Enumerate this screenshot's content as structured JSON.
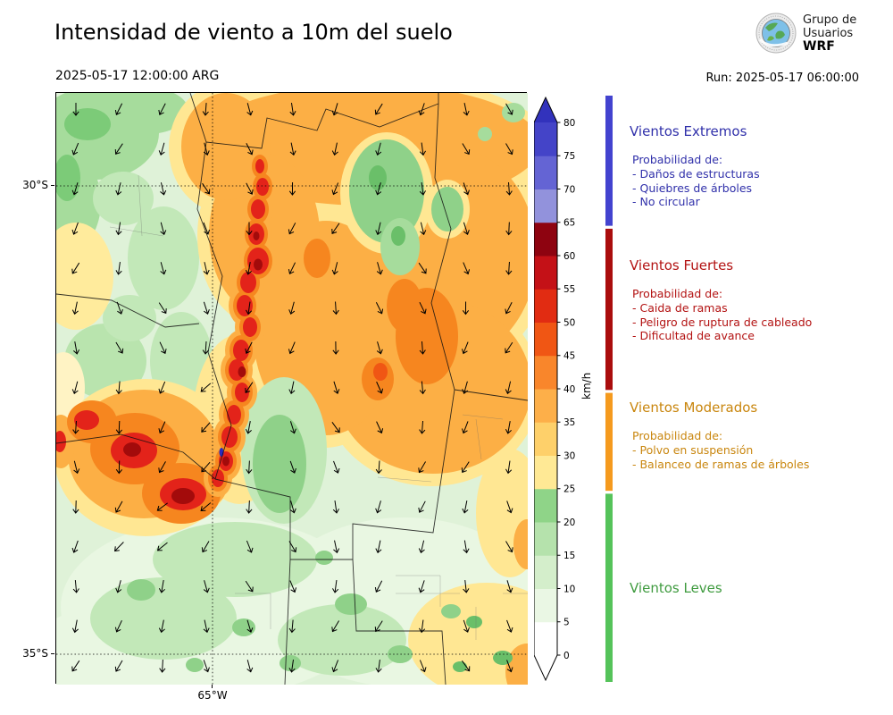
{
  "header": {
    "title": "Intensidad de viento a 10m del suelo",
    "valid_datetime": "2025-05-17 12:00:00 ARG",
    "run_label": "Run: 2025-05-17 06:00:00",
    "logo": {
      "line1": "Grupo de",
      "line2": "Usuarios",
      "line3": "WRF"
    }
  },
  "map": {
    "lat_labels": [
      "30°S",
      "35°S"
    ],
    "lon_labels": [
      "65°W"
    ],
    "wind_arrows": {
      "cols": 11,
      "rows": 15,
      "predominant_direction": "south"
    }
  },
  "colorbar": {
    "unit": "km/h",
    "ticks": [
      0,
      5,
      10,
      15,
      20,
      25,
      30,
      35,
      40,
      45,
      50,
      55,
      60,
      65,
      70,
      75,
      80
    ],
    "segment_colors_bottom_to_top": [
      "#ffffff",
      "#eaf7e4",
      "#d4eecb",
      "#b5e2ac",
      "#8fd488",
      "#ffe995",
      "#fed06a",
      "#fdaf49",
      "#f9862b",
      "#f05614",
      "#e12c12",
      "#c41117",
      "#8e0310",
      "#9292dc",
      "#6464d4",
      "#4444c8"
    ],
    "extend_over_color": "#3232bc",
    "extend_under_color": "#ffffff"
  },
  "legend": {
    "strip_segments": [
      {
        "color": "#4343cf",
        "from_pct": 0,
        "to_pct": 22.2
      },
      {
        "color": "#aa0d0d",
        "from_pct": 22.7,
        "to_pct": 50.2
      },
      {
        "color": "#f59a1e",
        "from_pct": 50.7,
        "to_pct": 67.4
      },
      {
        "color": "#55c35a",
        "from_pct": 67.9,
        "to_pct": 100
      }
    ],
    "sections": [
      {
        "name": "Vientos Extremos",
        "color": "#3030aa",
        "prob": "Probabilidad de:",
        "items": [
          "- Daños de estructuras",
          "- Quiebres de árboles",
          "- No circular"
        ]
      },
      {
        "name": "Vientos Fuertes",
        "color": "#b31212",
        "prob": "Probabilidad de:",
        "items": [
          "- Caida de ramas",
          "- Peligro de ruptura de cableado",
          "- Dificultad de avance"
        ]
      },
      {
        "name": "Vientos Moderados",
        "color": "#c9860e",
        "prob": "Probabilidad de:",
        "items": [
          "- Polvo en suspensión",
          "- Balanceo de ramas de árboles"
        ]
      },
      {
        "name": "Vientos Leves",
        "color": "#3f9b3f",
        "prob": "",
        "items": []
      }
    ]
  }
}
